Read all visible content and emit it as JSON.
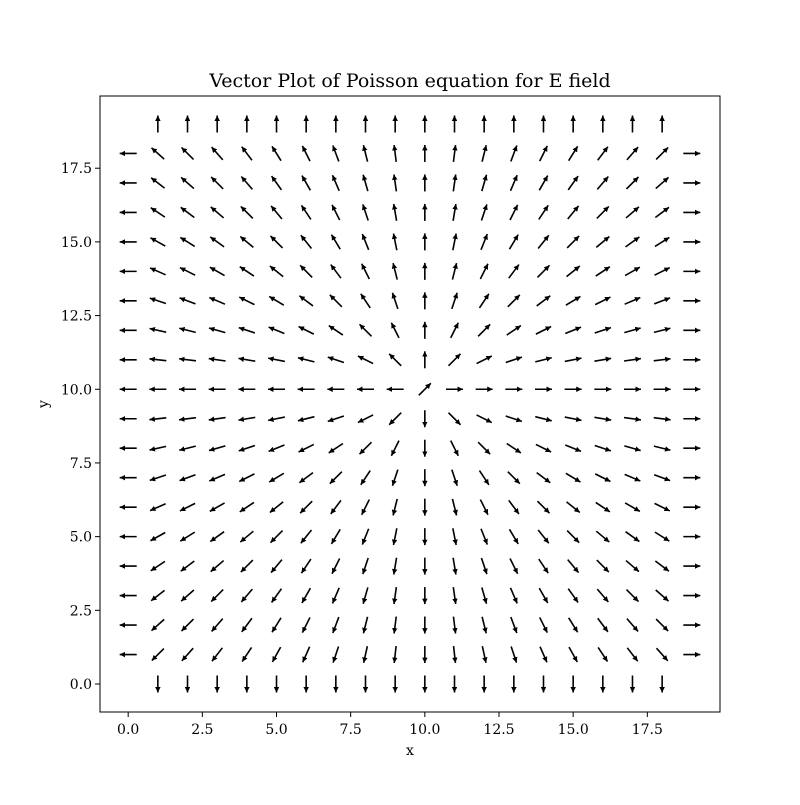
{
  "chart_data": {
    "type": "quiver",
    "title": "Vector Plot of Poisson equation for E field",
    "xlabel": "x",
    "ylabel": "y",
    "xlim": [
      -0.95,
      19.95
    ],
    "ylim": [
      -0.95,
      19.95
    ],
    "xticks": [
      0,
      2.5,
      5,
      7.5,
      10,
      12.5,
      15,
      17.5
    ],
    "xtick_labels": [
      "0.0",
      "2.5",
      "5.0",
      "7.5",
      "10.0",
      "12.5",
      "15.0",
      "17.5"
    ],
    "yticks": [
      0,
      2.5,
      5,
      7.5,
      10,
      12.5,
      15,
      17.5
    ],
    "ytick_labels": [
      "0.0",
      "2.5",
      "5.0",
      "7.5",
      "10.0",
      "12.5",
      "15.0",
      "17.5"
    ],
    "grid": false,
    "arrow_color": "#000000",
    "field": {
      "x": [
        0,
        1,
        2,
        3,
        4,
        5,
        6,
        7,
        8,
        9,
        10,
        11,
        12,
        13,
        14,
        15,
        16,
        17,
        18,
        19
      ],
      "y": [
        0,
        1,
        2,
        3,
        4,
        5,
        6,
        7,
        8,
        9,
        10,
        11,
        12,
        13,
        14,
        15,
        16,
        17,
        18,
        19
      ],
      "source": [
        10,
        10
      ],
      "description_of_pattern": "unit-length arrows pointing radially outward from the source point; bottom row points down, top row points up, left column points left, right column points right"
    }
  }
}
